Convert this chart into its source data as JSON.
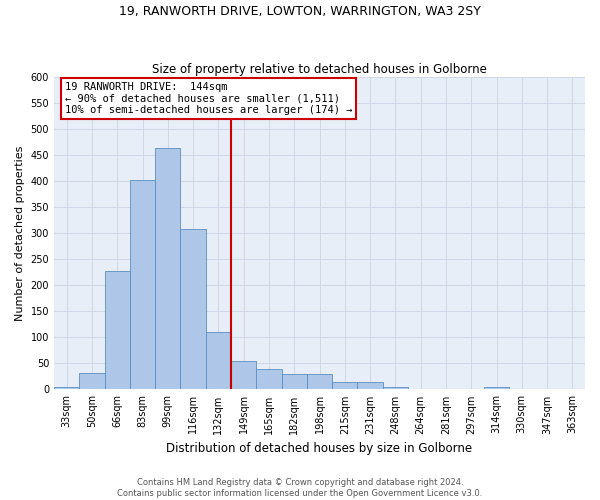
{
  "title1": "19, RANWORTH DRIVE, LOWTON, WARRINGTON, WA3 2SY",
  "title2": "Size of property relative to detached houses in Golborne",
  "xlabel": "Distribution of detached houses by size in Golborne",
  "ylabel": "Number of detached properties",
  "categories": [
    "33sqm",
    "50sqm",
    "66sqm",
    "83sqm",
    "99sqm",
    "116sqm",
    "132sqm",
    "149sqm",
    "165sqm",
    "182sqm",
    "198sqm",
    "215sqm",
    "231sqm",
    "248sqm",
    "264sqm",
    "281sqm",
    "297sqm",
    "314sqm",
    "330sqm",
    "347sqm",
    "363sqm"
  ],
  "values": [
    5,
    32,
    228,
    402,
    463,
    308,
    110,
    54,
    39,
    29,
    29,
    14,
    14,
    5,
    0,
    0,
    0,
    5,
    0,
    0,
    0
  ],
  "bar_color": "#aec6e8",
  "bar_edge_color": "#5a8fc2",
  "annotation_line1": "19 RANWORTH DRIVE:  144sqm",
  "annotation_line2": "← 90% of detached houses are smaller (1,511)",
  "annotation_line3": "10% of semi-detached houses are larger (174) →",
  "annotation_box_color": "#ffffff",
  "annotation_box_edge_color": "#cc0000",
  "vline_color": "#cc0000",
  "grid_color": "#d0d8e8",
  "bg_color": "#e8eef8",
  "footer1": "Contains HM Land Registry data © Crown copyright and database right 2024.",
  "footer2": "Contains public sector information licensed under the Open Government Licence v3.0.",
  "ylim": [
    0,
    600
  ],
  "yticks": [
    0,
    50,
    100,
    150,
    200,
    250,
    300,
    350,
    400,
    450,
    500,
    550,
    600
  ],
  "title1_fontsize": 9,
  "title2_fontsize": 8.5,
  "ylabel_fontsize": 8,
  "xlabel_fontsize": 8.5,
  "tick_fontsize": 7,
  "annot_fontsize": 7.5,
  "footer_fontsize": 6
}
